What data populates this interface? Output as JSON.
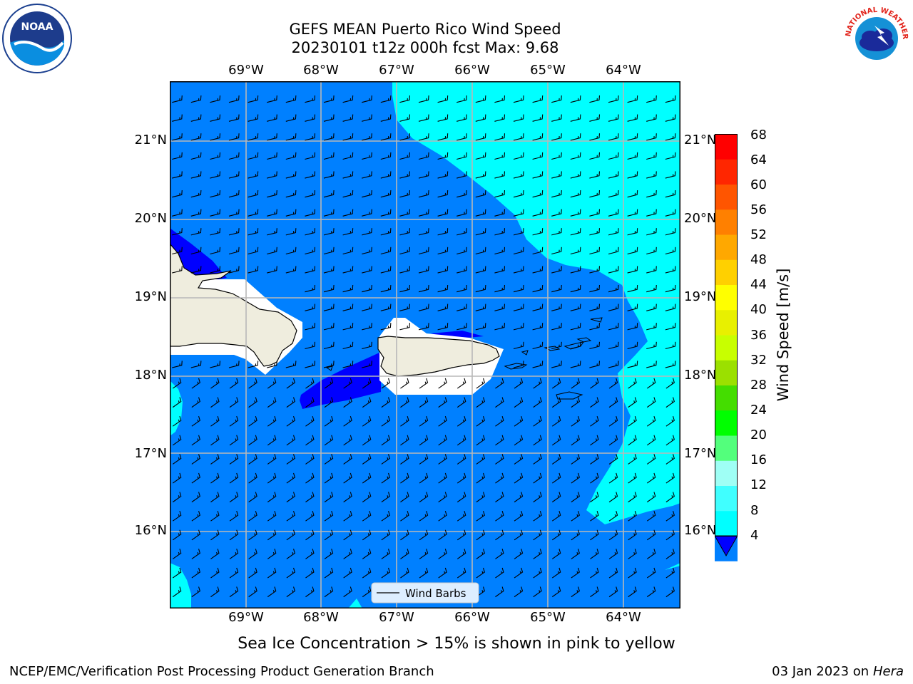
{
  "title": {
    "line1": "GEFS MEAN Puerto Rico Wind Speed",
    "line2": "20230101 t12z 000h fcst   Max: 9.68"
  },
  "longitude_labels": [
    "69°W",
    "68°W",
    "67°W",
    "66°W",
    "65°W",
    "64°W"
  ],
  "latitude_labels": [
    "21°N",
    "20°N",
    "19°N",
    "18°N",
    "17°N",
    "16°N"
  ],
  "legend": {
    "label": "Wind Barbs"
  },
  "colorbar": {
    "title": "Wind Speed [m/s]",
    "ticks": [
      "68",
      "64",
      "60",
      "56",
      "52",
      "48",
      "44",
      "40",
      "36",
      "32",
      "28",
      "24",
      "20",
      "16",
      "12",
      "8",
      "4"
    ],
    "colors": [
      "#0000ff",
      "#0080ff",
      "#00ffff",
      "#40ffff",
      "#9ffff5",
      "#53ff7c",
      "#00ff00",
      "#44dd00",
      "#9be000",
      "#c8ff00",
      "#e8f000",
      "#ffff00",
      "#ffd000",
      "#ffa800",
      "#ff8000",
      "#ff5500",
      "#ff2600",
      "#ff0000"
    ],
    "extend": "min"
  },
  "map_colors": {
    "ocean_main": "#0080ff",
    "ocean_high": "#00ffff",
    "ocean_low": "#0000ff",
    "land": "#efedde",
    "grid": "#b8b8b8"
  },
  "logos": {
    "left": "NOAA",
    "right": "NATIONAL WEATHER SERVICE"
  },
  "subtitle": "Sea Ice Concentration > 15% is shown in pink to yellow",
  "footer": {
    "left": "NCEP/EMC/Verification Post Processing Product Generation Branch",
    "right_date": "03 Jan 2023 on ",
    "right_host": "Hera"
  }
}
